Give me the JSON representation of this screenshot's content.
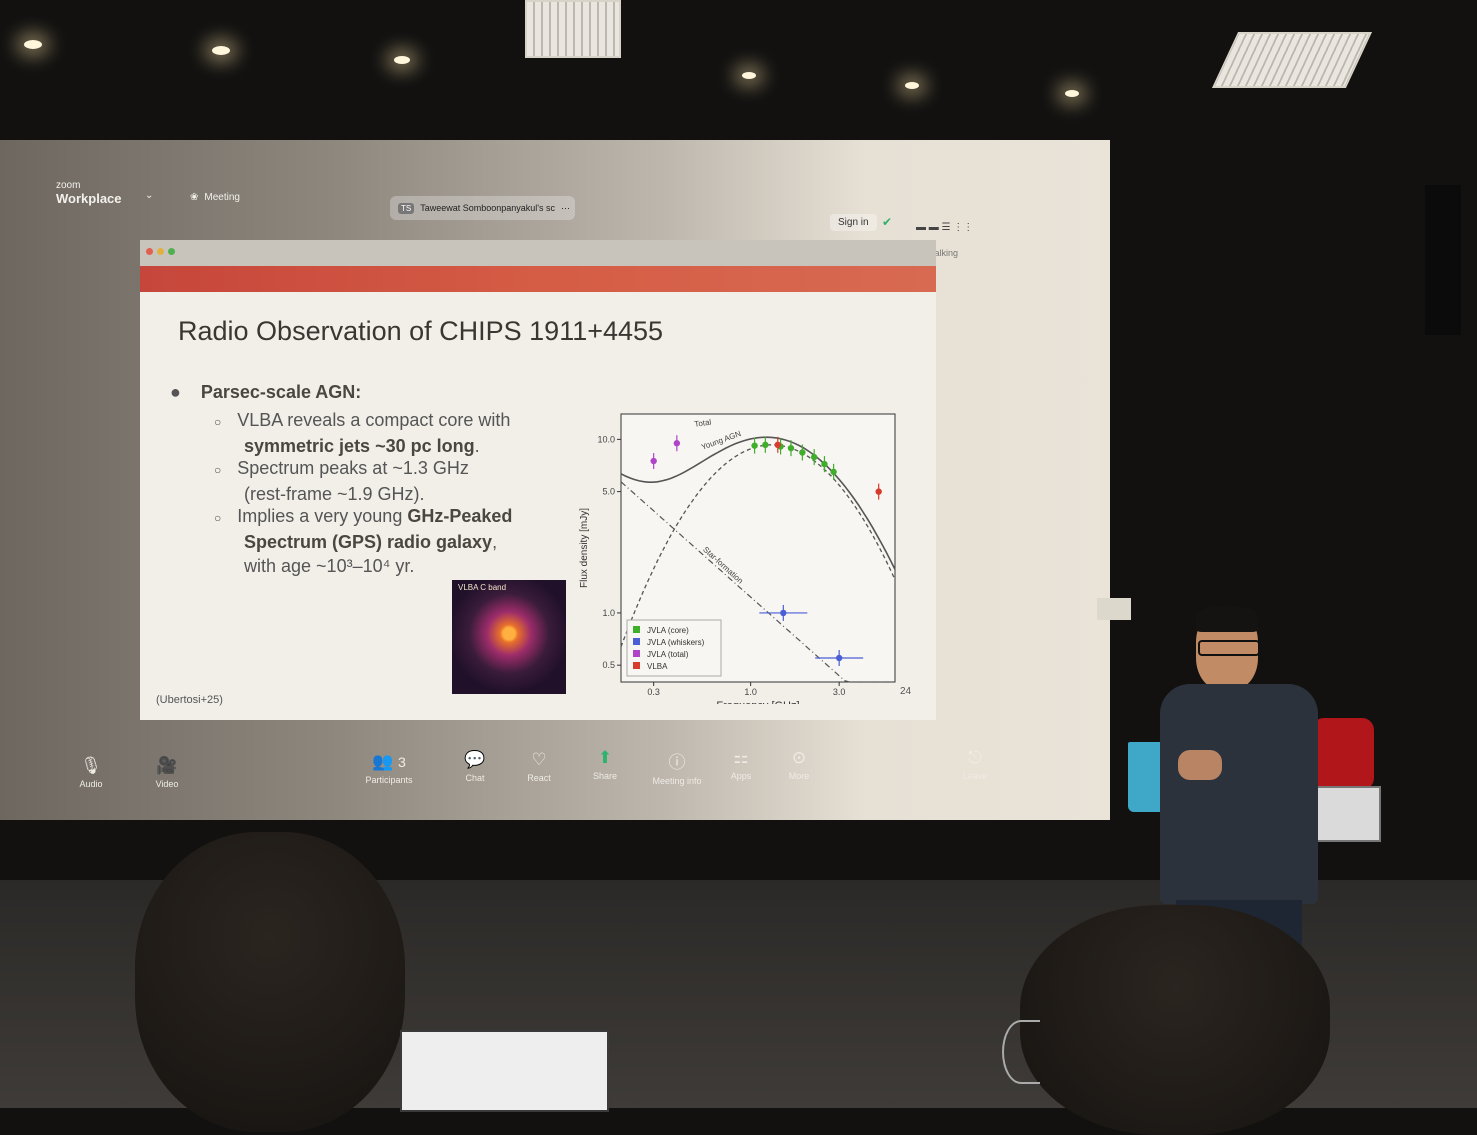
{
  "zoom": {
    "logo_small": "zoom",
    "logo": "Workplace",
    "meeting_label": "Meeting",
    "share_title": "Taweewat Somboonpanyakul's sc",
    "sign_in": "Sign in",
    "talking": "Talking"
  },
  "slide": {
    "title": "Radio Observation of CHIPS 1911+4455",
    "bullet_main": "Parsec-scale AGN:",
    "sub1_a": "VLBA reveals a compact core with",
    "sub1_b": "symmetric jets ~30 pc long",
    "sub1_c": ".",
    "sub2_a": "Spectrum peaks at ~1.3 GHz",
    "sub2_b": "(rest-frame ~1.9 GHz).",
    "sub3_a": "Implies a very young ",
    "sub3_b": "GHz-Peaked",
    "sub3_c": "Spectrum (GPS) radio galaxy",
    "sub3_d": ",",
    "sub3_e": "with age ~10³–10⁴ yr.",
    "citation": "(Ubertosi+25)",
    "page_number": "24",
    "vlba_label": "VLBA C band"
  },
  "chart_data": {
    "type": "scatter",
    "title": "",
    "xlabel": "Frequency [GHz]",
    "ylabel": "Flux density [mJy]",
    "x_scale": "log",
    "y_scale": "log",
    "xlim": [
      0.2,
      6.0
    ],
    "ylim": [
      0.4,
      14.0
    ],
    "x_ticks": [
      "0.3",
      "1.0",
      "3.0"
    ],
    "y_ticks": [
      "0.5",
      "1.0",
      "5.0",
      "10.0"
    ],
    "curve_labels": [
      "Total",
      "Young AGN",
      "Star-formation"
    ],
    "legend_position": "bottom-left",
    "series": [
      {
        "name": "JVLA (core)",
        "color": "#3fae2a",
        "x": [
          1.05,
          1.2,
          1.45,
          1.65,
          1.9,
          2.2,
          2.5,
          2.8
        ],
        "y": [
          9.2,
          9.3,
          9.1,
          8.9,
          8.4,
          7.9,
          7.2,
          6.5
        ]
      },
      {
        "name": "JVLA (whiskers)",
        "color": "#4a5fd6",
        "x": [
          1.5,
          3.0
        ],
        "y": [
          1.0,
          0.55
        ]
      },
      {
        "name": "JVLA (total)",
        "color": "#b044c8",
        "x": [
          0.3,
          0.4
        ],
        "y": [
          7.5,
          9.5
        ]
      },
      {
        "name": "VLBA",
        "color": "#d63b2e",
        "x": [
          1.4,
          4.9
        ],
        "y": [
          9.3,
          5.0
        ]
      }
    ]
  },
  "toolbar": {
    "audio": "Audio",
    "video": "Video",
    "participants": "Participants",
    "participants_count": "3",
    "chat": "Chat",
    "react": "React",
    "share": "Share",
    "meeting_info": "Meeting info",
    "apps": "Apps",
    "more": "More",
    "leave": "Leave"
  },
  "colors": {
    "slide_bar": "#c6463b",
    "share_green": "#2db36b"
  }
}
